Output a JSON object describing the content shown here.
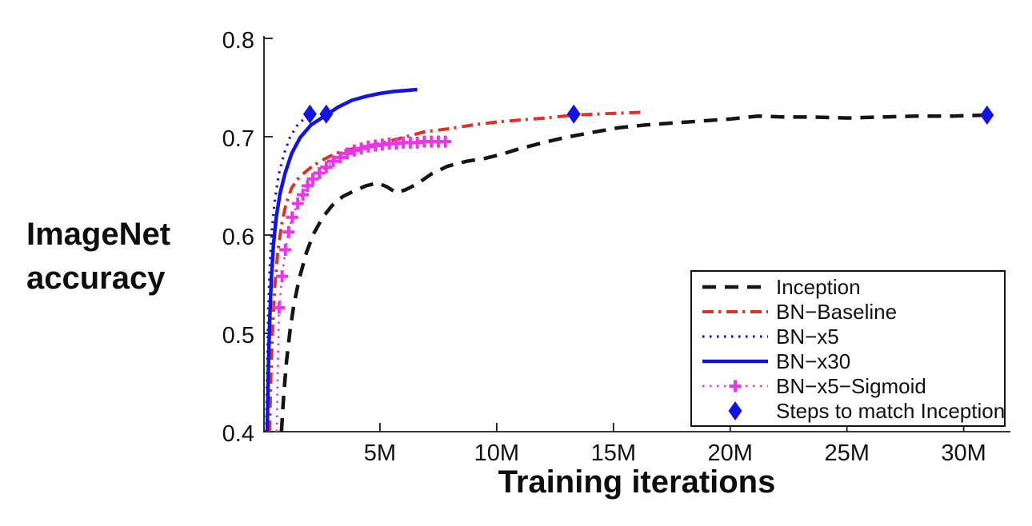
{
  "figure": {
    "ylabel_line1": "ImageNet",
    "ylabel_line2": "accuracy",
    "xlabel": "Training iterations"
  },
  "colors": {
    "inception_black": "#151515",
    "bn_baseline_red": "#e03127",
    "bn_blue": "#1414e0",
    "bn_sigmoid_magenta": "#ea35ea",
    "axis": "#1a1a1a",
    "background": "#ffffff"
  },
  "legend": {
    "position": "lower right",
    "items": [
      {
        "label": "Inception",
        "color": "#151515",
        "style": "dashed",
        "width": 4.5,
        "marker": "none"
      },
      {
        "label": "BN−Baseline",
        "color": "#e03127",
        "style": "dashdot",
        "width": 4.0,
        "marker": "none"
      },
      {
        "label": "BN−x5",
        "color": "#1414e0",
        "style": "dotted",
        "width": 3.2,
        "marker": "none"
      },
      {
        "label": "BN−x30",
        "color": "#1414e0",
        "style": "solid",
        "width": 4.5,
        "marker": "none"
      },
      {
        "label": "BN−x5−Sigmoid",
        "color": "#ea35ea",
        "style": "dotted",
        "width": 2.6,
        "marker": "plus"
      },
      {
        "label": "Steps to match Inception",
        "color": "#1414e0",
        "style": "none",
        "width": 0,
        "marker": "diamond"
      }
    ]
  },
  "chart_data": {
    "type": "line",
    "title": "",
    "xlabel": "Training iterations",
    "ylabel": "ImageNet accuracy",
    "x_unit": "millions of training iterations",
    "xlim": [
      0,
      32
    ],
    "ylim": [
      0.4,
      0.8
    ],
    "grid": false,
    "legend_position": "lower right",
    "x_ticks": {
      "values": [
        5,
        10,
        15,
        20,
        25,
        30
      ],
      "labels": [
        "5M",
        "10M",
        "15M",
        "20M",
        "25M",
        "30M"
      ]
    },
    "y_ticks": {
      "values": [
        0.4,
        0.5,
        0.6,
        0.7,
        0.8
      ],
      "labels": [
        "0.4",
        "0.5",
        "0.6",
        "0.7",
        "0.8"
      ]
    },
    "series": [
      {
        "name": "Inception",
        "color": "#151515",
        "style": "dashed",
        "width": 4.5,
        "marker": "none",
        "points": [
          [
            0.78,
            0.4
          ],
          [
            0.88,
            0.438
          ],
          [
            1.0,
            0.472
          ],
          [
            1.15,
            0.503
          ],
          [
            1.32,
            0.53
          ],
          [
            1.55,
            0.556
          ],
          [
            1.85,
            0.582
          ],
          [
            2.15,
            0.601
          ],
          [
            2.55,
            0.618
          ],
          [
            2.95,
            0.63
          ],
          [
            3.4,
            0.639
          ],
          [
            3.9,
            0.645
          ],
          [
            4.4,
            0.65
          ],
          [
            4.9,
            0.653
          ],
          [
            5.3,
            0.649
          ],
          [
            5.7,
            0.643
          ],
          [
            6.1,
            0.646
          ],
          [
            6.6,
            0.652
          ],
          [
            7.2,
            0.662
          ],
          [
            7.9,
            0.67
          ],
          [
            8.7,
            0.675
          ],
          [
            9.5,
            0.678
          ],
          [
            10.2,
            0.682
          ],
          [
            11.0,
            0.688
          ],
          [
            12.0,
            0.694
          ],
          [
            12.9,
            0.699
          ],
          [
            14.0,
            0.704
          ],
          [
            15.2,
            0.709
          ],
          [
            16.4,
            0.712
          ],
          [
            17.6,
            0.714
          ],
          [
            18.8,
            0.716
          ],
          [
            20.0,
            0.718
          ],
          [
            21.2,
            0.721
          ],
          [
            22.4,
            0.72
          ],
          [
            23.6,
            0.72
          ],
          [
            25.0,
            0.719
          ],
          [
            26.5,
            0.72
          ],
          [
            28.0,
            0.721
          ],
          [
            29.5,
            0.721
          ],
          [
            31.0,
            0.722
          ]
        ]
      },
      {
        "name": "BN-Baseline",
        "color": "#e03127",
        "style": "dashdot",
        "width": 4.0,
        "marker": "none",
        "points": [
          [
            0.27,
            0.4
          ],
          [
            0.33,
            0.455
          ],
          [
            0.4,
            0.505
          ],
          [
            0.5,
            0.548
          ],
          [
            0.62,
            0.582
          ],
          [
            0.78,
            0.61
          ],
          [
            0.98,
            0.632
          ],
          [
            1.22,
            0.648
          ],
          [
            1.55,
            0.659
          ],
          [
            2.1,
            0.67
          ],
          [
            2.6,
            0.677
          ],
          [
            3.1,
            0.683
          ],
          [
            3.7,
            0.687
          ],
          [
            4.3,
            0.69
          ],
          [
            5.0,
            0.693
          ],
          [
            5.8,
            0.698
          ],
          [
            6.9,
            0.705
          ],
          [
            7.9,
            0.708
          ],
          [
            9.0,
            0.712
          ],
          [
            10.0,
            0.715
          ],
          [
            11.0,
            0.717
          ],
          [
            12.1,
            0.719
          ],
          [
            13.3,
            0.722
          ],
          [
            14.3,
            0.723
          ],
          [
            15.3,
            0.724
          ],
          [
            16.3,
            0.725
          ]
        ]
      },
      {
        "name": "BN-x5",
        "color": "#1414e0",
        "style": "dotted",
        "width": 3.2,
        "marker": "none",
        "points": [
          [
            0.13,
            0.4
          ],
          [
            0.17,
            0.465
          ],
          [
            0.22,
            0.523
          ],
          [
            0.28,
            0.568
          ],
          [
            0.37,
            0.605
          ],
          [
            0.5,
            0.636
          ],
          [
            0.66,
            0.661
          ],
          [
            0.88,
            0.682
          ],
          [
            1.14,
            0.699
          ],
          [
            1.44,
            0.711
          ],
          [
            1.74,
            0.718
          ],
          [
            2.04,
            0.722
          ],
          [
            2.3,
            0.724
          ]
        ]
      },
      {
        "name": "BN-x30",
        "color": "#1414e0",
        "style": "solid",
        "width": 4.5,
        "marker": "none",
        "points": [
          [
            0.17,
            0.4
          ],
          [
            0.22,
            0.462
          ],
          [
            0.28,
            0.515
          ],
          [
            0.35,
            0.556
          ],
          [
            0.44,
            0.59
          ],
          [
            0.56,
            0.618
          ],
          [
            0.72,
            0.642
          ],
          [
            0.94,
            0.663
          ],
          [
            1.22,
            0.683
          ],
          [
            1.58,
            0.699
          ],
          [
            2.05,
            0.712
          ],
          [
            2.7,
            0.722
          ],
          [
            3.2,
            0.73
          ],
          [
            3.8,
            0.737
          ],
          [
            4.4,
            0.741
          ],
          [
            5.0,
            0.744
          ],
          [
            5.6,
            0.746
          ],
          [
            6.1,
            0.747
          ],
          [
            6.6,
            0.748
          ]
        ]
      },
      {
        "name": "BN-x5-Sigmoid",
        "color": "#ea35ea",
        "style": "dotted",
        "width": 2.6,
        "marker": "plus",
        "marker_from": 2,
        "points": [
          [
            0.58,
            0.4
          ],
          [
            0.62,
            0.462
          ],
          [
            0.68,
            0.526
          ],
          [
            0.81,
            0.558
          ],
          [
            0.95,
            0.585
          ],
          [
            1.09,
            0.603
          ],
          [
            1.24,
            0.618
          ],
          [
            1.48,
            0.632
          ],
          [
            1.7,
            0.641
          ],
          [
            1.9,
            0.65
          ],
          [
            2.12,
            0.657
          ],
          [
            2.4,
            0.663
          ],
          [
            2.7,
            0.669
          ],
          [
            3.0,
            0.675
          ],
          [
            3.3,
            0.679
          ],
          [
            3.6,
            0.683
          ],
          [
            3.9,
            0.686
          ],
          [
            4.2,
            0.688
          ],
          [
            4.5,
            0.69
          ],
          [
            4.8,
            0.691
          ],
          [
            5.1,
            0.692
          ],
          [
            5.4,
            0.693
          ],
          [
            5.7,
            0.693
          ],
          [
            6.0,
            0.694
          ],
          [
            6.3,
            0.694
          ],
          [
            6.6,
            0.694
          ],
          [
            6.9,
            0.695
          ],
          [
            7.2,
            0.695
          ],
          [
            7.5,
            0.695
          ],
          [
            7.8,
            0.695
          ]
        ]
      }
    ],
    "annotations": {
      "name": "Steps to match Inception",
      "marker": "diamond",
      "color": "#1414e0",
      "points": [
        [
          2.0,
          0.723
        ],
        [
          2.7,
          0.723
        ],
        [
          13.3,
          0.723
        ],
        [
          31.0,
          0.722
        ]
      ]
    }
  }
}
